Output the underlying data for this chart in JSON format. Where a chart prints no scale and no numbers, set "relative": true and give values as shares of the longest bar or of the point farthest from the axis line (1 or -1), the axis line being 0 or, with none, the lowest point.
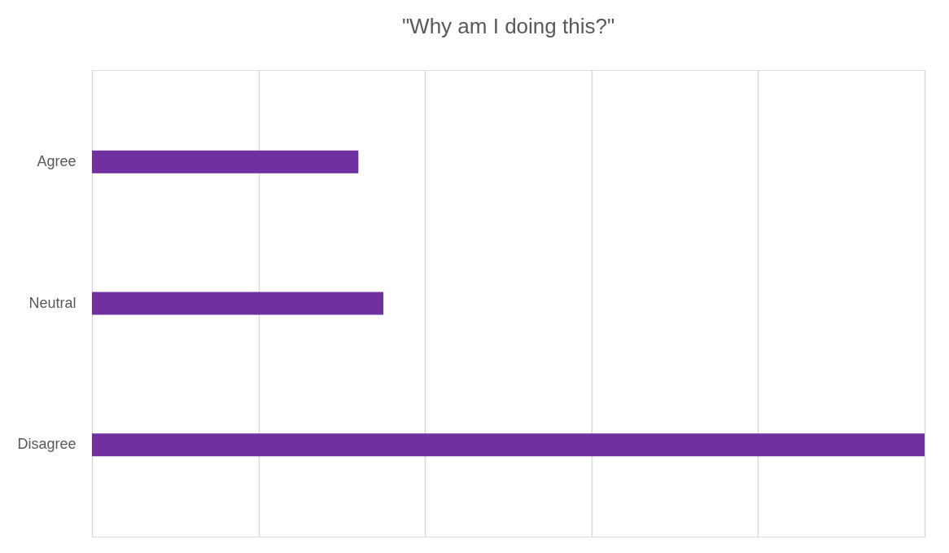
{
  "chart_data": {
    "type": "bar",
    "orientation": "horizontal",
    "relative": true,
    "title": "\"Why am I doing this?\"",
    "categories": [
      "Agree",
      "Neutral",
      "Disagree"
    ],
    "values": [
      0.32,
      0.35,
      1
    ],
    "color": "#7030a0",
    "grid": "x"
  }
}
